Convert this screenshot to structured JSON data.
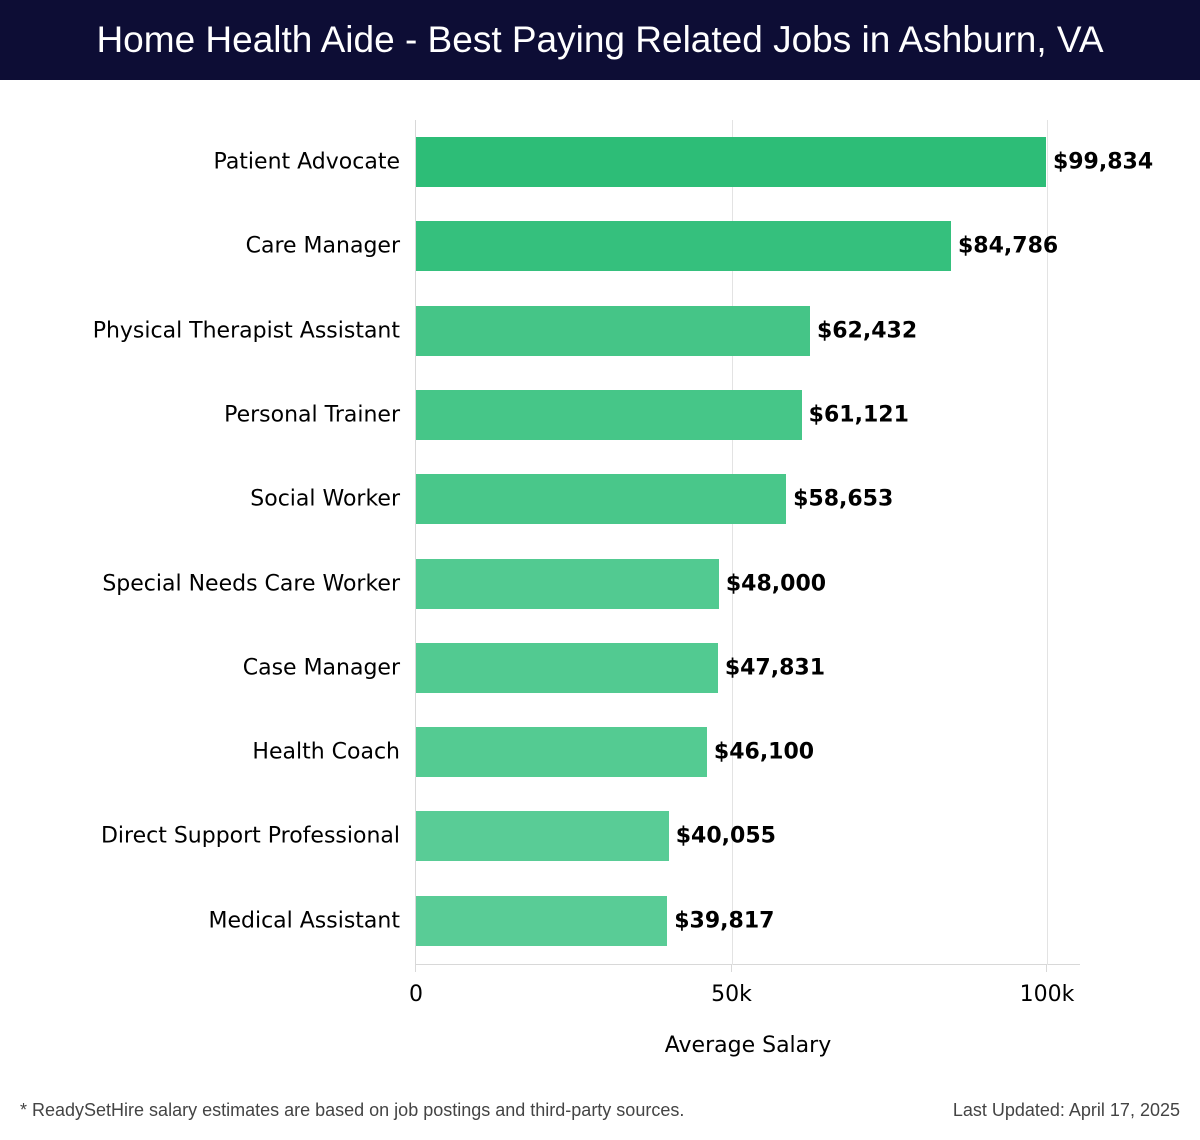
{
  "header": {
    "title": "Home Health Aide - Best Paying Related Jobs in Ashburn, VA"
  },
  "footer": {
    "note": "* ReadySetHire salary estimates are based on job postings and third-party sources.",
    "updated": "Last Updated: April 17, 2025"
  },
  "axis": {
    "xlabel": "Average Salary",
    "ticks": [
      {
        "label": "0",
        "value": 0
      },
      {
        "label": "50k",
        "value": 50000
      },
      {
        "label": "100k",
        "value": 100000
      }
    ]
  },
  "bars": [
    {
      "label": "Patient Advocate",
      "value": 99834,
      "display": "$99,834",
      "color": "#2dbd77"
    },
    {
      "label": "Care Manager",
      "value": 84786,
      "display": "$84,786",
      "color": "#35c07d"
    },
    {
      "label": "Physical Therapist Assistant",
      "value": 62432,
      "display": "$62,432",
      "color": "#45c587"
    },
    {
      "label": "Personal Trainer",
      "value": 61121,
      "display": "$61,121",
      "color": "#46c688"
    },
    {
      "label": "Social Worker",
      "value": 58653,
      "display": "$58,653",
      "color": "#49c78a"
    },
    {
      "label": "Special Needs Care Worker",
      "value": 48000,
      "display": "$48,000",
      "color": "#52ca91"
    },
    {
      "label": "Case Manager",
      "value": 47831,
      "display": "$47,831",
      "color": "#52ca91"
    },
    {
      "label": "Health Coach",
      "value": 46100,
      "display": "$46,100",
      "color": "#54cb92"
    },
    {
      "label": "Direct Support Professional",
      "value": 40055,
      "display": "$40,055",
      "color": "#59cc96"
    },
    {
      "label": "Medical Assistant",
      "value": 39817,
      "display": "$39,817",
      "color": "#59cc96"
    }
  ],
  "chart_data": {
    "type": "bar",
    "orientation": "horizontal",
    "title": "Home Health Aide - Best Paying Related Jobs in Ashburn, VA",
    "xlabel": "Average Salary",
    "ylabel": "",
    "xlim": [
      0,
      105000
    ],
    "xticks": [
      "0",
      "50k",
      "100k"
    ],
    "grid": true,
    "categories": [
      "Patient Advocate",
      "Care Manager",
      "Physical Therapist Assistant",
      "Personal Trainer",
      "Social Worker",
      "Special Needs Care Worker",
      "Case Manager",
      "Health Coach",
      "Direct Support Professional",
      "Medical Assistant"
    ],
    "values": [
      99834,
      84786,
      62432,
      61121,
      58653,
      48000,
      47831,
      46100,
      40055,
      39817
    ],
    "data_labels": [
      "$99,834",
      "$84,786",
      "$62,432",
      "$61,121",
      "$58,653",
      "$48,000",
      "$47,831",
      "$46,100",
      "$40,055",
      "$39,817"
    ]
  }
}
